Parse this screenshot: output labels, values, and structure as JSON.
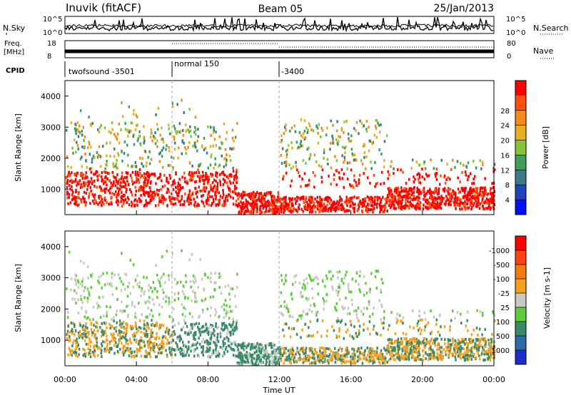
{
  "header": {
    "station": "Inuvik (fitACF)",
    "beam": "Beam 05",
    "date": "25/Jan/2013"
  },
  "sky_panel": {
    "left_label": "N.Sky",
    "right_label": "N.Search",
    "left_ticks": [
      "10^5",
      "10^0"
    ],
    "right_ticks": [
      "10^5",
      "10^0"
    ]
  },
  "freq_panel": {
    "left_label_1": "Freq.",
    "left_label_2": "[MHz]",
    "right_label": "Nave",
    "left_ticks": [
      "18",
      "8"
    ],
    "right_ticks": [
      "80",
      "0"
    ]
  },
  "cpid_panel": {
    "label": "CPID",
    "modes": [
      {
        "name": "twofsound -3501",
        "start_hour": 0,
        "end_hour": 6
      },
      {
        "name": "normal 150",
        "start_hour": 6,
        "end_hour": 12
      },
      {
        "name": "-3400",
        "start_hour": 12,
        "end_hour": 24
      }
    ]
  },
  "chart_data": [
    {
      "type": "heatmap",
      "title": "",
      "xlabel": "",
      "ylabel": "Slant Range [km]",
      "xlim": [
        0,
        24
      ],
      "ylim": [
        180,
        4500
      ],
      "y_ticks": [
        1000,
        2000,
        3000,
        4000
      ],
      "colorbar": {
        "label": "Power [dB]",
        "ticks": [
          "4",
          "8",
          "12",
          "16",
          "20",
          "24",
          "28"
        ],
        "colors": [
          "#0010ff",
          "#2244b8",
          "#3a7a8a",
          "#3e9e5a",
          "#86c43a",
          "#e8b020",
          "#f58a1a",
          "#ff5010",
          "#ff0000"
        ]
      }
    },
    {
      "type": "heatmap",
      "title": "",
      "xlabel": "Time UT",
      "ylabel": "Slant Range [km]",
      "xlim": [
        0,
        24
      ],
      "ylim": [
        180,
        4500
      ],
      "y_ticks": [
        1000,
        2000,
        3000,
        4000
      ],
      "x_ticks": [
        "00:00",
        "04:00",
        "08:00",
        "12:00",
        "16:00",
        "20:00",
        "00:00"
      ],
      "colorbar": {
        "label": "Velocity [m s-1]",
        "ticks": [
          "1000",
          "500",
          "100",
          "25",
          "-25",
          "-100",
          "-500",
          "-1000"
        ],
        "colors": [
          "#1a2ecc",
          "#2e6aa8",
          "#3a8a6a",
          "#5ccc3a",
          "#c8c8c0",
          "#f5a020",
          "#f57a10",
          "#ff4010",
          "#ff0000"
        ]
      }
    }
  ],
  "colors": {
    "power_hot": "#ff2a10",
    "velocity_green": "#3a8a5a",
    "velocity_orange": "#f59020",
    "ground_gray": "#c8c8c0"
  }
}
